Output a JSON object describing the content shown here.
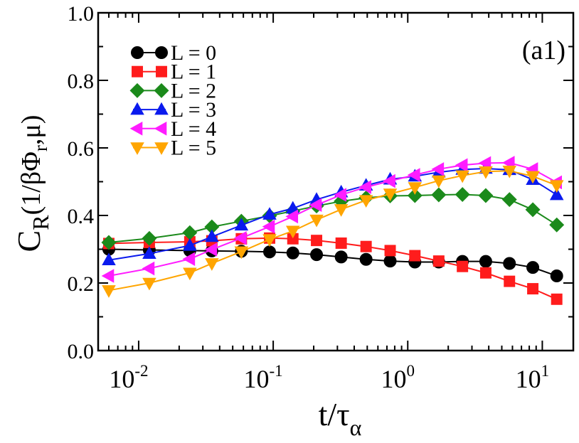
{
  "chart_data": {
    "type": "line",
    "title": "",
    "annotation": "(a1)",
    "xlabel": {
      "base": "t/τ",
      "sub": "α"
    },
    "ylabel": {
      "base": "C",
      "sub1": "R",
      "mid": "(1/βΦ",
      "sub2": "r",
      "end": ",μ)"
    },
    "xscale": "log",
    "xlim": [
      0.005,
      17
    ],
    "ylim": [
      0,
      1
    ],
    "yticks": [
      "0.0",
      "0.2",
      "0.4",
      "0.6",
      "0.8",
      "1.0"
    ],
    "xticks": [
      {
        "base": "10",
        "exp": "-2",
        "value": 0.01
      },
      {
        "base": "10",
        "exp": "-1",
        "value": 0.1
      },
      {
        "base": "10",
        "exp": "0",
        "value": 1
      },
      {
        "base": "10",
        "exp": "1",
        "value": 10
      }
    ],
    "legend_position": "top-left",
    "x": [
      0.006,
      0.012,
      0.024,
      0.035,
      0.058,
      0.094,
      0.14,
      0.21,
      0.32,
      0.49,
      0.74,
      1.13,
      1.7,
      2.55,
      3.8,
      5.7,
      8.5,
      12.8
    ],
    "series": [
      {
        "name": "L = 0",
        "marker": "circle",
        "color": "#000000",
        "values": [
          0.3,
          0.298,
          0.296,
          0.295,
          0.294,
          0.292,
          0.289,
          0.284,
          0.277,
          0.27,
          0.265,
          0.262,
          0.262,
          0.264,
          0.264,
          0.258,
          0.246,
          0.221
        ]
      },
      {
        "name": "L = 1",
        "marker": "square",
        "color": "#ff1c1c",
        "values": [
          0.317,
          0.32,
          0.322,
          0.325,
          0.331,
          0.333,
          0.331,
          0.326,
          0.318,
          0.308,
          0.296,
          0.281,
          0.265,
          0.249,
          0.23,
          0.205,
          0.183,
          0.152
        ]
      },
      {
        "name": "L = 2",
        "marker": "diamond",
        "color": "#1b8a1b",
        "values": [
          0.32,
          0.332,
          0.349,
          0.366,
          0.383,
          0.399,
          0.413,
          0.428,
          0.442,
          0.452,
          0.458,
          0.459,
          0.461,
          0.462,
          0.459,
          0.447,
          0.417,
          0.372
        ]
      },
      {
        "name": "L = 3",
        "marker": "triangle-up",
        "color": "#0a1aee",
        "values": [
          0.268,
          0.287,
          0.311,
          0.337,
          0.371,
          0.403,
          0.421,
          0.447,
          0.469,
          0.489,
          0.507,
          0.516,
          0.528,
          0.536,
          0.539,
          0.535,
          0.506,
          0.461
        ]
      },
      {
        "name": "L = 4",
        "marker": "triangle-left",
        "color": "#ff1cff",
        "values": [
          0.221,
          0.243,
          0.271,
          0.299,
          0.333,
          0.367,
          0.397,
          0.431,
          0.461,
          0.484,
          0.502,
          0.52,
          0.537,
          0.549,
          0.555,
          0.556,
          0.537,
          0.498
        ]
      },
      {
        "name": "L = 5",
        "marker": "triangle-down",
        "color": "#ffa500",
        "values": [
          0.178,
          0.2,
          0.23,
          0.258,
          0.293,
          0.329,
          0.354,
          0.387,
          0.418,
          0.445,
          0.464,
          0.483,
          0.503,
          0.518,
          0.53,
          0.532,
          0.516,
          0.489
        ]
      }
    ]
  }
}
